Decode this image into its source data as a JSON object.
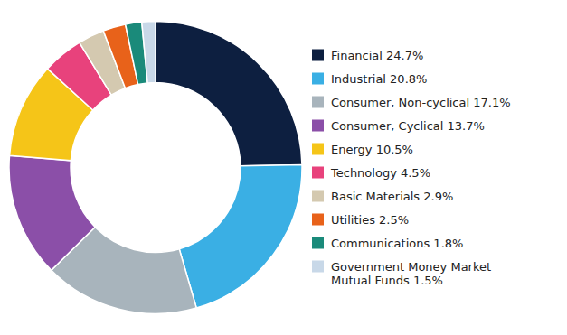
{
  "chart_data": {
    "type": "donut",
    "categories": [
      "Financial 24.7%",
      "Industrial 20.8%",
      "Consumer, Non-cyclical 17.1%",
      "Consumer, Cyclical 13.7%",
      "Energy 10.5%",
      "Technology 4.5%",
      "Basic Materials 2.9%",
      "Utilities 2.5%",
      "Communications 1.8%",
      "Government Money Market\nMutual Funds 1.5%"
    ],
    "values": [
      24.7,
      20.8,
      17.1,
      13.7,
      10.5,
      4.5,
      2.9,
      2.5,
      1.8,
      1.5
    ],
    "colors": [
      "#0d1f40",
      "#3aafe4",
      "#a8b4bc",
      "#8b4fa8",
      "#f5c518",
      "#e8427c",
      "#d4c9b0",
      "#e8621a",
      "#1a8a7a",
      "#c8d8e8"
    ],
    "legend": "right"
  }
}
